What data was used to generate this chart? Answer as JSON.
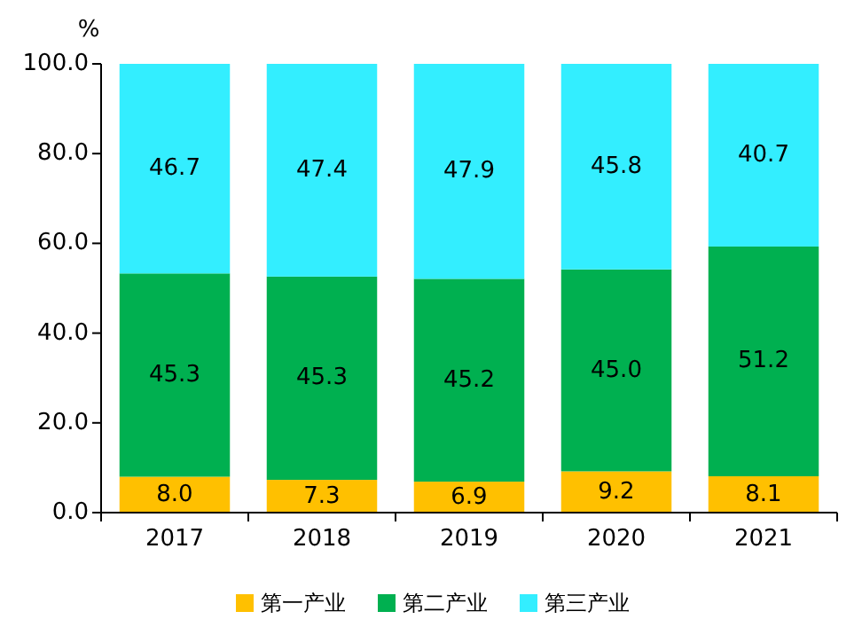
{
  "chart_data": {
    "type": "bar",
    "stacked": true,
    "ylabel": "%",
    "categories": [
      "2017",
      "2018",
      "2019",
      "2020",
      "2021"
    ],
    "ylim": [
      0,
      100
    ],
    "yticks": [
      {
        "value": 0,
        "label": "0.0"
      },
      {
        "value": 20,
        "label": "20.0"
      },
      {
        "value": 40,
        "label": "40.0"
      },
      {
        "value": 60,
        "label": "60.0"
      },
      {
        "value": 80,
        "label": "80.0"
      },
      {
        "value": 100,
        "label": "100.0"
      }
    ],
    "series": [
      {
        "name": "第一产业",
        "color": "#ffc000",
        "values": [
          8.0,
          7.3,
          6.9,
          9.2,
          8.1
        ],
        "value_labels": [
          "8.0",
          "7.3",
          "6.9",
          "9.2",
          "8.1"
        ]
      },
      {
        "name": "第二产业",
        "color": "#00b050",
        "values": [
          45.3,
          45.3,
          45.2,
          45.0,
          51.2
        ],
        "value_labels": [
          "45.3",
          "45.3",
          "45.2",
          "45.0",
          "51.2"
        ]
      },
      {
        "name": "第三产业",
        "color": "#33eeff",
        "values": [
          46.7,
          47.4,
          47.9,
          45.8,
          40.7
        ],
        "value_labels": [
          "46.7",
          "47.4",
          "47.9",
          "45.8",
          "40.7"
        ]
      }
    ],
    "grid": false,
    "legend": "bottom"
  }
}
